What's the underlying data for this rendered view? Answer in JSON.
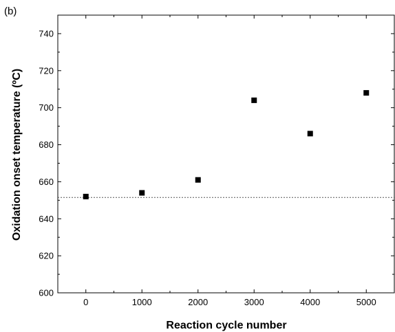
{
  "panel_label": "(b)",
  "chart_data": {
    "type": "scatter",
    "title": "",
    "xlabel": "Reaction cycle number",
    "ylabel": "Oxidation onset temperature (ºC)",
    "xlim": [
      -500,
      5500
    ],
    "ylim": [
      600,
      750
    ],
    "xticks": [
      0,
      1000,
      2000,
      3000,
      4000,
      5000
    ],
    "yticks": [
      600,
      620,
      640,
      660,
      680,
      700,
      720,
      740
    ],
    "grid": false,
    "legend": "none",
    "series": [
      {
        "x": [
          0,
          1000,
          2000,
          3000,
          4000,
          5000
        ],
        "y": [
          652,
          654,
          661,
          704,
          686,
          708
        ],
        "marker": "square",
        "color": "#000000"
      }
    ],
    "reference_line": {
      "y": 651.5,
      "style": "dotted",
      "color": "#555555"
    }
  }
}
